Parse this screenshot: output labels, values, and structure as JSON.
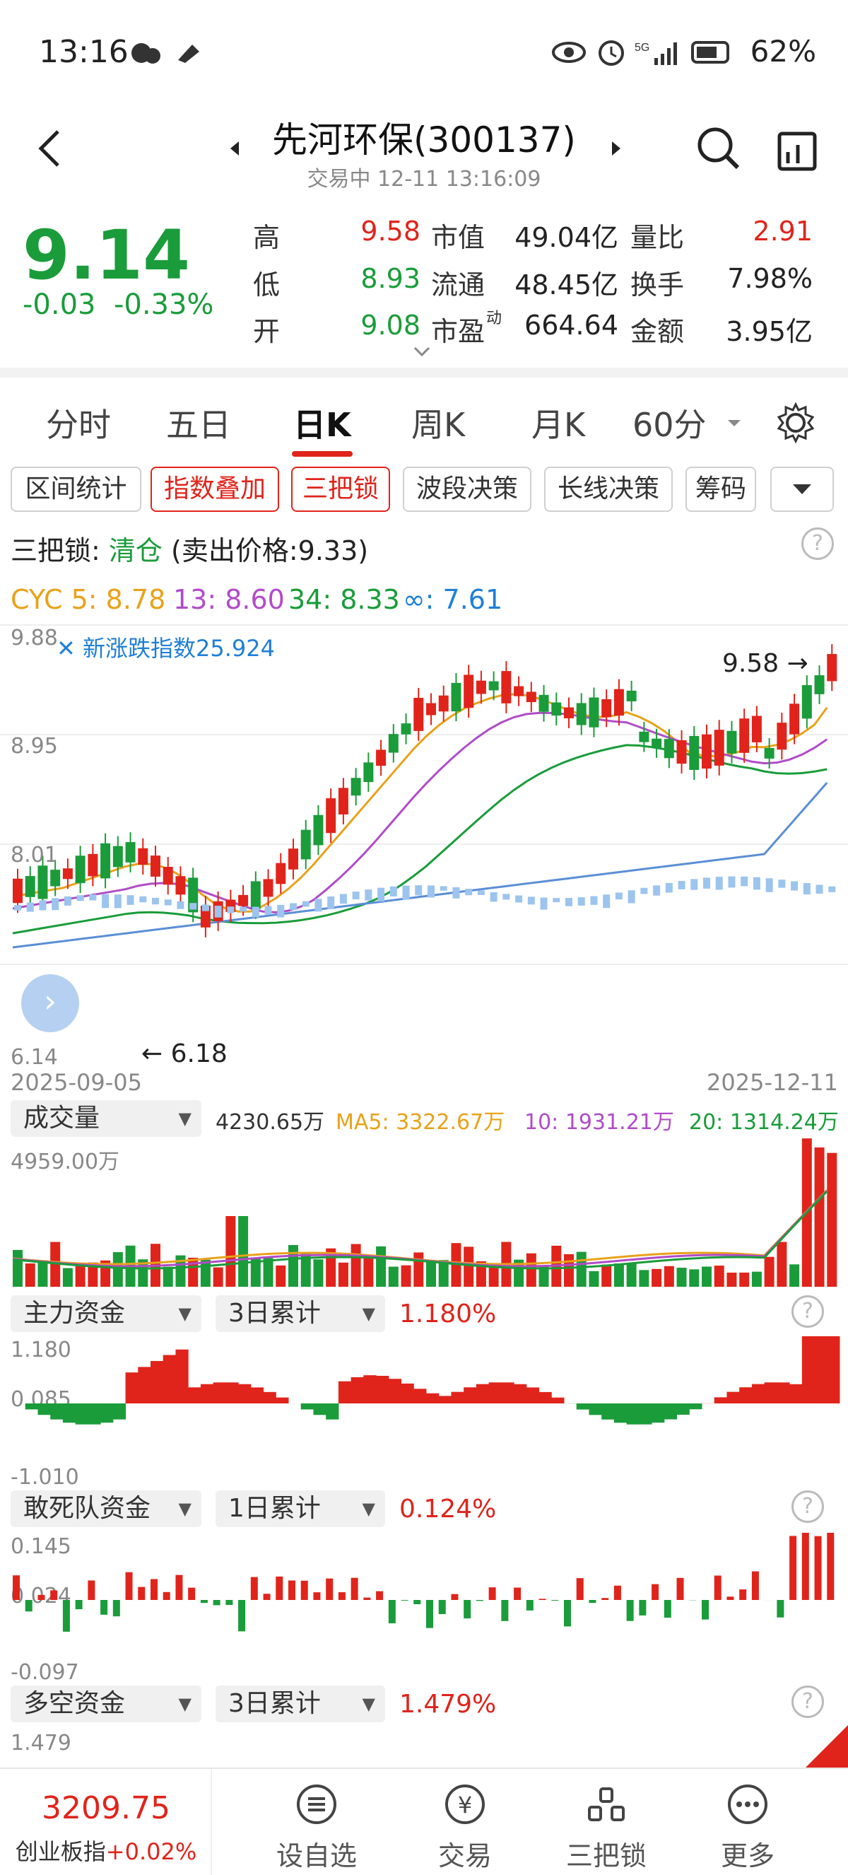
{
  "status_bar": {
    "time": "13:16",
    "battery": "62%",
    "network": "5G"
  },
  "header": {
    "title": "先河环保(300137)",
    "subtitle": "交易中 12-11 13:16:09"
  },
  "quote": {
    "price": "9.14",
    "change": "-0.03",
    "change_pct": "-0.33%",
    "rows": [
      [
        {
          "l": "高",
          "v": "9.58",
          "c": "red"
        },
        {
          "l": "市值",
          "v": "49.04亿",
          "c": "dark"
        },
        {
          "l": "量比",
          "v": "2.91",
          "c": "red"
        }
      ],
      [
        {
          "l": "低",
          "v": "8.93",
          "c": "green"
        },
        {
          "l": "流通",
          "v": "48.45亿",
          "c": "dark"
        },
        {
          "l": "换手",
          "v": "7.98%",
          "c": "dark"
        }
      ],
      [
        {
          "l": "开",
          "v": "9.08",
          "c": "green"
        },
        {
          "l": "市盈",
          "sup": "动",
          "v": "664.64",
          "c": "dark"
        },
        {
          "l": "金额",
          "v": "3.95亿",
          "c": "dark"
        }
      ]
    ]
  },
  "tabs": [
    "分时",
    "五日",
    "日K",
    "周K",
    "月K",
    "60分"
  ],
  "active_tab": "日K",
  "chips": [
    "区间统计",
    "指数叠加",
    "三把锁",
    "波段决策",
    "长线决策",
    "筹码"
  ],
  "lock_status": {
    "label": "三把锁:",
    "status": "清仓",
    "detail": "(卖出价格:9.33)"
  },
  "cyc": {
    "prefix": "CYC 5: 8.78",
    "v13": "13: 8.60",
    "v34": "34: 8.33",
    "vinf": "∞: 7.61"
  },
  "kline": {
    "y_top": "9.88",
    "y_mid1": "8.95",
    "y_mid2": "8.01",
    "y_bottom": "6.14",
    "overlay": "新涨跌指数25.924",
    "high_mark": "9.58",
    "low_mark": "6.18",
    "date_start": "2025-09-05",
    "date_end": "2025-12-11"
  },
  "volume": {
    "selector": "成交量",
    "value": "4230.65万",
    "ma5": "MA5: 3322.67万",
    "ma10": "10: 1931.21万",
    "ma20": "20: 1314.24万",
    "max": "4959.00万"
  },
  "main_funds": {
    "selector": "主力资金",
    "period": "3日累计",
    "value": "1.180%",
    "top": "1.180",
    "mid": "0.085",
    "bottom": "-1.010"
  },
  "dare_funds": {
    "selector": "敢死队资金",
    "period": "1日累计",
    "value": "0.124%",
    "top": "0.145",
    "mid": "0.024",
    "bottom": "-0.097"
  },
  "ls_funds": {
    "selector": "多空资金",
    "period": "3日累计",
    "value": "1.479%",
    "top": "1.479"
  },
  "bottom_nav": {
    "index_value": "3209.75",
    "index_name": "创业板指",
    "index_change": "+0.02%",
    "items": [
      "设自选",
      "交易",
      "三把锁",
      "更多"
    ]
  },
  "colors": {
    "up": "#e0241b",
    "down": "#1a9c3a",
    "accent": "#e0241b",
    "blue": "#1e7fd8"
  }
}
